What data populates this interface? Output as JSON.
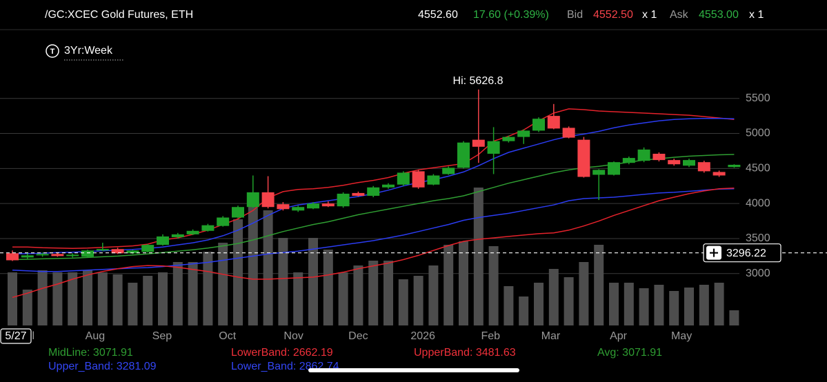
{
  "chart_data": {
    "type": "candlestick",
    "title": "/GC:XCEC Gold Futures, ETH",
    "quote": {
      "last": "4552.60",
      "change": "17.60 (+0.39%)",
      "bid_label": "Bid",
      "bid": "4552.50",
      "bid_size": "x 1",
      "ask_label": "Ask",
      "ask": "4553.00",
      "ask_size": "x 1"
    },
    "timeframe": "3Yr:Week",
    "annotation": "Hi: 5626.8",
    "date_marker": "5/27",
    "crosshair_price": 3296.22,
    "ylim": [
      2260,
      5920
    ],
    "yticks": [
      3000,
      3500,
      4000,
      4500,
      5000,
      5500
    ],
    "grid": true,
    "xticks": [
      {
        "value": 1,
        "label": "Jul"
      },
      {
        "value": 5.5,
        "label": "Aug"
      },
      {
        "value": 9.95,
        "label": "Sep"
      },
      {
        "value": 14.3,
        "label": "Oct"
      },
      {
        "value": 18.7,
        "label": "Nov"
      },
      {
        "value": 23,
        "label": "Dec"
      },
      {
        "value": 27.3,
        "label": "2026"
      },
      {
        "value": 31.8,
        "label": "Feb"
      },
      {
        "value": 35.8,
        "label": "Mar"
      },
      {
        "value": 40.3,
        "label": "Apr"
      },
      {
        "value": 44.5,
        "label": "May"
      }
    ],
    "up_color": "#1fa12a",
    "down_color": "#f5434a",
    "open": [
      3290,
      3230,
      3260,
      3280,
      3250,
      3240,
      3330,
      3350,
      3290,
      3310,
      3410,
      3520,
      3560,
      3610,
      3680,
      3800,
      3950,
      4160,
      3990,
      3900,
      3930,
      4000,
      3960,
      4150,
      4110,
      4230,
      4270,
      4460,
      4270,
      4420,
      4510,
      4910,
      4710,
      4890,
      4950,
      5040,
      5250,
      5080,
      4910,
      4410,
      4410,
      4580,
      4610,
      4710,
      4620,
      4540,
      4590,
      4450,
      4520
    ],
    "high": [
      3330,
      3290,
      3300,
      3300,
      3290,
      3340,
      3440,
      3370,
      3340,
      3420,
      3560,
      3580,
      3630,
      3710,
      3820,
      3970,
      4400,
      4390,
      4020,
      3970,
      4020,
      4030,
      4160,
      4170,
      4250,
      4290,
      4460,
      4480,
      4420,
      4530,
      4890,
      5626.8,
      5090,
      4970,
      5060,
      5230,
      5420,
      5100,
      4950,
      4490,
      4600,
      4670,
      4800,
      4730,
      4640,
      4640,
      4610,
      4470,
      4560
    ],
    "low": [
      3180,
      3210,
      3240,
      3240,
      3230,
      3230,
      3320,
      3280,
      3280,
      3300,
      3400,
      3500,
      3550,
      3600,
      3670,
      3790,
      3940,
      3930,
      3900,
      3880,
      3920,
      3950,
      3940,
      4100,
      4090,
      4210,
      4250,
      4210,
      4260,
      4410,
      4500,
      4580,
      4420,
      4870,
      4850,
      5020,
      5060,
      4930,
      4370,
      4050,
      4400,
      4560,
      4590,
      4600,
      4540,
      4520,
      4440,
      4380,
      4510
    ],
    "close": [
      3190,
      3260,
      3280,
      3250,
      3270,
      3330,
      3350,
      3290,
      3330,
      3410,
      3530,
      3560,
      3610,
      3690,
      3800,
      3950,
      4160,
      3950,
      3920,
      3950,
      4000,
      3960,
      4140,
      4110,
      4230,
      4270,
      4440,
      4230,
      4400,
      4510,
      4870,
      4810,
      4890,
      4950,
      5040,
      5210,
      5070,
      4940,
      4380,
      4480,
      4590,
      4650,
      4770,
      4620,
      4560,
      4620,
      4460,
      4400,
      4552.6
    ],
    "volume": [
      38.5,
      26,
      40,
      38.5,
      38.5,
      40,
      38.5,
      37,
      31,
      36,
      38.5,
      46,
      46,
      53.5,
      60,
      77,
      88.5,
      83.5,
      63.5,
      38.5,
      63.5,
      55,
      38.5,
      43.5,
      47,
      47,
      33.5,
      36,
      43.5,
      58.5,
      61,
      100,
      57.5,
      28.5,
      21,
      31,
      41,
      35,
      46,
      58.5,
      31,
      31,
      27,
      29.5,
      25,
      27.5,
      29.5,
      31,
      11
    ],
    "volume_lim": [
      0,
      100
    ],
    "volume_color": "#4d4d4d",
    "overlays": [
      {
        "color": "#e5222b",
        "values": [
          3380,
          3380,
          3370,
          3365,
          3360,
          3365,
          3375,
          3385,
          3395,
          3420,
          3480,
          3510,
          3560,
          3620,
          3700,
          3780,
          3900,
          4080,
          4170,
          4200,
          4210,
          4230,
          4260,
          4300,
          4330,
          4370,
          4430,
          4480,
          4510,
          4540,
          4570,
          4700,
          4890,
          4960,
          5050,
          5180,
          5290,
          5350,
          5340,
          5320,
          5310,
          5300,
          5290,
          5280,
          5270,
          5260,
          5240,
          5220,
          5200
        ]
      },
      {
        "color": "#2b3cf2",
        "values": [
          3280,
          3285,
          3290,
          3300,
          3305,
          3315,
          3325,
          3335,
          3345,
          3360,
          3380,
          3410,
          3440,
          3480,
          3540,
          3620,
          3720,
          3830,
          3930,
          3980,
          4010,
          4040,
          4070,
          4100,
          4140,
          4190,
          4250,
          4300,
          4340,
          4390,
          4450,
          4540,
          4640,
          4730,
          4790,
          4850,
          4910,
          4960,
          4990,
          5030,
          5080,
          5120,
          5150,
          5180,
          5200,
          5210,
          5215,
          5215,
          5210
        ]
      },
      {
        "color": "#2f9e32",
        "values": [
          3200,
          3205,
          3210,
          3215,
          3220,
          3230,
          3240,
          3250,
          3265,
          3280,
          3300,
          3320,
          3340,
          3365,
          3395,
          3430,
          3480,
          3540,
          3600,
          3650,
          3700,
          3740,
          3790,
          3840,
          3880,
          3920,
          3960,
          4000,
          4040,
          4070,
          4110,
          4170,
          4230,
          4290,
          4340,
          4390,
          4440,
          4480,
          4510,
          4530,
          4560,
          4590,
          4620,
          4640,
          4660,
          4675,
          4685,
          4695,
          4700
        ]
      },
      {
        "color": "#2b3cf2",
        "values": [
          3050,
          3040,
          3030,
          3030,
          3040,
          3050,
          3060,
          3070,
          3080,
          3085,
          3100,
          3120,
          3140,
          3160,
          3190,
          3220,
          3250,
          3280,
          3300,
          3320,
          3350,
          3380,
          3410,
          3440,
          3470,
          3510,
          3550,
          3600,
          3650,
          3700,
          3760,
          3800,
          3830,
          3860,
          3900,
          3940,
          3980,
          4040,
          4070,
          4080,
          4090,
          4110,
          4130,
          4150,
          4160,
          4175,
          4190,
          4205,
          4210
        ]
      },
      {
        "color": "#e5222b",
        "values": [
          2660,
          2720,
          2790,
          2850,
          2920,
          2980,
          3030,
          3070,
          3100,
          3115,
          3110,
          3090,
          3060,
          3030,
          2990,
          2950,
          2920,
          2920,
          2930,
          2940,
          2950,
          2980,
          3020,
          3070,
          3110,
          3150,
          3200,
          3260,
          3330,
          3400,
          3460,
          3490,
          3510,
          3530,
          3550,
          3570,
          3580,
          3620,
          3680,
          3750,
          3830,
          3900,
          3970,
          4040,
          4090,
          4140,
          4180,
          4210,
          4220
        ]
      }
    ],
    "legend": [
      {
        "text": "MidLine: 3071.91",
        "color": "#2f9e32"
      },
      {
        "text": "LowerBand: 2662.19",
        "color": "#f0303a"
      },
      {
        "text": "UpperBand: 3481.63",
        "color": "#f0303a"
      },
      {
        "text": "Avg: 3071.91",
        "color": "#2f9e32"
      },
      {
        "text": "Upper_Band: 3281.09",
        "color": "#3346f5"
      },
      {
        "text": "Lower_Band: 2862.74",
        "color": "#3346f5"
      }
    ]
  }
}
